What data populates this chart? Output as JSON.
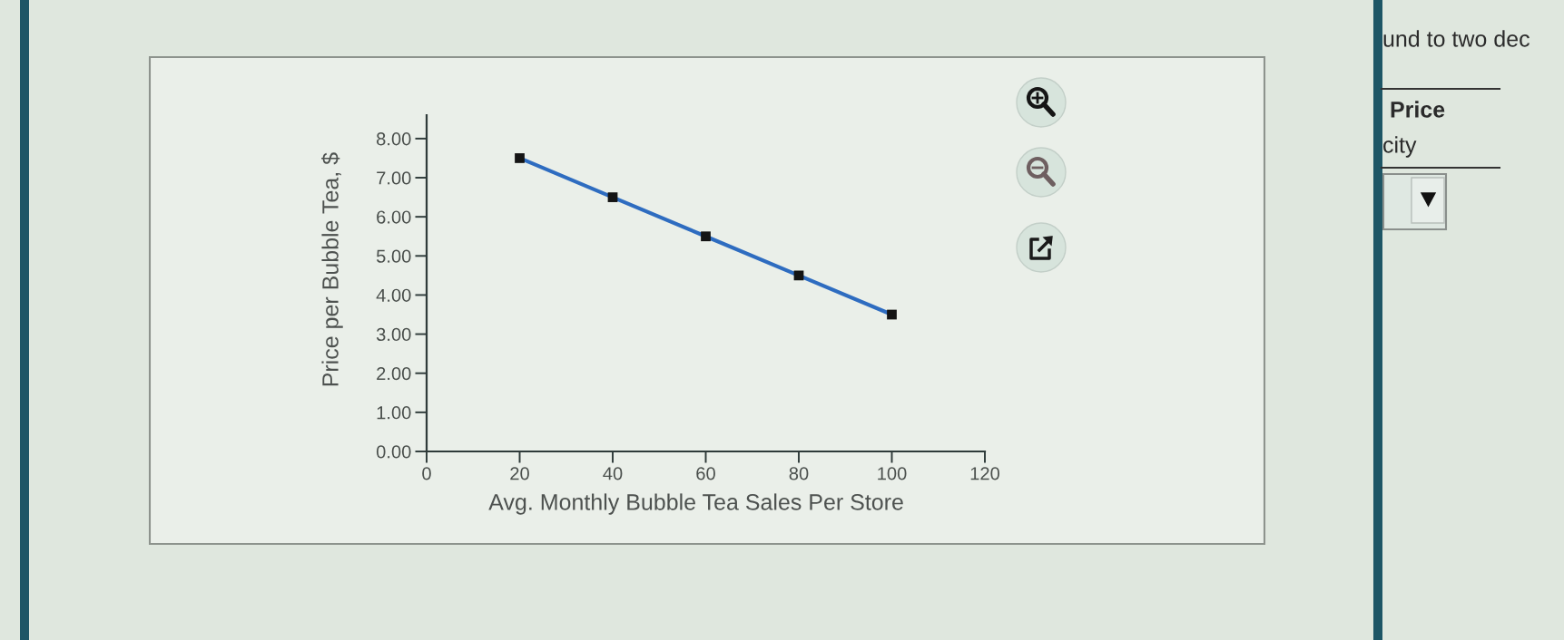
{
  "chart_data": {
    "type": "line",
    "xlabel": "Avg. Monthly Bubble Tea Sales Per Store",
    "ylabel": "Price per Bubble Tea, $",
    "x": [
      20,
      40,
      60,
      80,
      100
    ],
    "series": [
      {
        "color": "#2e6cc0",
        "colors": [
          "#141414",
          "#141414",
          "#141414",
          "#141414",
          "#141414"
        ],
        "values": [
          7.5,
          6.5,
          5.5,
          4.5,
          3.5
        ]
      }
    ],
    "xlim": [
      0,
      120
    ],
    "xticks": [
      0,
      20,
      40,
      60,
      80,
      100,
      120
    ],
    "ylim": [
      0,
      8.6
    ],
    "yticks": [
      {
        "value": 0,
        "label": "0.00"
      },
      {
        "value": 1,
        "label": "1.00"
      },
      {
        "value": 2,
        "label": "2.00"
      },
      {
        "value": 3,
        "label": "3.00"
      },
      {
        "value": 4,
        "label": "4.00"
      },
      {
        "value": 5,
        "label": "5.00"
      },
      {
        "value": 6,
        "label": "6.00"
      },
      {
        "value": 7,
        "label": "7.00"
      },
      {
        "value": 8,
        "label": "8.00"
      }
    ],
    "marker": "square",
    "line_style": "solid",
    "annotations": [
      "und to two dec",
      "Price",
      "city"
    ]
  }
}
